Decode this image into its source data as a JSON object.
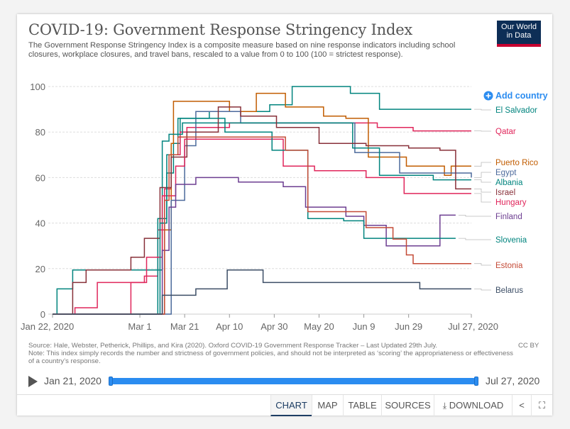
{
  "header": {
    "title": "COVID-19: Government Response Stringency Index",
    "subtitle": "The Government Response Stringency Index is a composite measure based on nine response indicators including school closures, workplace closures, and travel bans, rescaled to a value from 0 to 100 (100 = strictest response).",
    "logo_line1": "Our World",
    "logo_line2": "in Data"
  },
  "add_country_label": "Add country",
  "footer": {
    "source": "Source: Hale, Webster, Petherick, Phillips, and Kira (2020). Oxford COVID-19 Government Response Tracker – Last Updated 29th July.",
    "note": "Note: This index simply records the number and strictness of government policies, and should not be interpreted as ‘scoring’ the appropriateness or effectiveness of a country’s response.",
    "license": "CC BY"
  },
  "timeline": {
    "start_label": "Jan 21, 2020",
    "end_label": "Jul 27, 2020"
  },
  "controls": {
    "chart": "CHART",
    "map": "MAP",
    "table": "TABLE",
    "sources": "SOURCES",
    "download": "DOWNLOAD"
  },
  "chart_data": {
    "type": "line",
    "title": "COVID-19: Government Response Stringency Index",
    "x_domain": [
      "2020-01-22",
      "2020-07-27"
    ],
    "ylim": [
      0,
      100
    ],
    "y_ticks": [
      0,
      20,
      40,
      60,
      80,
      100
    ],
    "x_ticks": [
      {
        "date": "2020-01-22",
        "label": "Jan 22, 2020"
      },
      {
        "date": "2020-03-01",
        "label": "Mar 1"
      },
      {
        "date": "2020-03-21",
        "label": "Mar 21"
      },
      {
        "date": "2020-04-10",
        "label": "Apr 10"
      },
      {
        "date": "2020-04-30",
        "label": "Apr 30"
      },
      {
        "date": "2020-05-20",
        "label": "May 20"
      },
      {
        "date": "2020-06-09",
        "label": "Jun 9"
      },
      {
        "date": "2020-06-29",
        "label": "Jun 29"
      },
      {
        "date": "2020-07-27",
        "label": "Jul 27, 2020"
      }
    ],
    "grid": "horizontal-dashed",
    "legend": "right",
    "series": [
      {
        "name": "El Salvador",
        "color": "#00847e",
        "points": [
          [
            "2020-01-22",
            0
          ],
          [
            "2020-01-24",
            11.1
          ],
          [
            "2020-01-31",
            19.4
          ],
          [
            "2020-03-06",
            19.4
          ],
          [
            "2020-03-11",
            42
          ],
          [
            "2020-03-13",
            62
          ],
          [
            "2020-03-16",
            75
          ],
          [
            "2020-03-19",
            86
          ],
          [
            "2020-04-01",
            89
          ],
          [
            "2020-04-28",
            92
          ],
          [
            "2020-05-08",
            100
          ],
          [
            "2020-06-03",
            97
          ],
          [
            "2020-06-16",
            90
          ],
          [
            "2020-07-27",
            90
          ]
        ]
      },
      {
        "name": "Qatar",
        "color": "#e0265b",
        "points": [
          [
            "2020-01-22",
            0
          ],
          [
            "2020-02-01",
            2.8
          ],
          [
            "2020-02-11",
            13.9
          ],
          [
            "2020-03-03",
            16.7
          ],
          [
            "2020-03-09",
            37
          ],
          [
            "2020-03-12",
            55
          ],
          [
            "2020-03-15",
            70
          ],
          [
            "2020-03-19",
            80
          ],
          [
            "2020-03-22",
            82
          ],
          [
            "2020-04-10",
            84
          ],
          [
            "2020-06-15",
            82
          ],
          [
            "2020-07-01",
            80.5
          ],
          [
            "2020-07-27",
            80.5
          ]
        ]
      },
      {
        "name": "Puerto Rico",
        "color": "#c15c00",
        "points": [
          [
            "2020-01-22",
            0
          ],
          [
            "2020-03-07",
            0
          ],
          [
            "2020-03-12",
            37
          ],
          [
            "2020-03-15",
            75
          ],
          [
            "2020-03-16",
            93.5
          ],
          [
            "2020-04-01",
            93.5
          ],
          [
            "2020-04-10",
            89
          ],
          [
            "2020-04-22",
            97
          ],
          [
            "2020-05-05",
            91
          ],
          [
            "2020-05-22",
            87
          ],
          [
            "2020-06-01",
            86
          ],
          [
            "2020-06-11",
            69
          ],
          [
            "2020-06-28",
            65
          ],
          [
            "2020-07-15",
            61
          ],
          [
            "2020-07-18",
            65
          ],
          [
            "2020-07-27",
            65
          ]
        ]
      },
      {
        "name": "Egypt",
        "color": "#4c6a9c",
        "points": [
          [
            "2020-01-22",
            0
          ],
          [
            "2020-03-09",
            0
          ],
          [
            "2020-03-15",
            50
          ],
          [
            "2020-03-21",
            74
          ],
          [
            "2020-03-26",
            89
          ],
          [
            "2020-04-15",
            84
          ],
          [
            "2020-05-15",
            84
          ],
          [
            "2020-06-05",
            71
          ],
          [
            "2020-06-25",
            62
          ],
          [
            "2020-07-27",
            60
          ]
        ]
      },
      {
        "name": "Albania",
        "color": "#00847e",
        "points": [
          [
            "2020-01-22",
            0
          ],
          [
            "2020-03-07",
            0
          ],
          [
            "2020-03-09",
            42
          ],
          [
            "2020-03-11",
            76
          ],
          [
            "2020-03-14",
            79
          ],
          [
            "2020-03-20",
            84
          ],
          [
            "2020-04-10",
            84
          ],
          [
            "2020-05-15",
            84
          ],
          [
            "2020-06-01",
            84
          ],
          [
            "2020-06-04",
            73
          ],
          [
            "2020-06-16",
            61
          ],
          [
            "2020-07-01",
            61
          ],
          [
            "2020-07-10",
            59
          ],
          [
            "2020-07-27",
            59
          ]
        ]
      },
      {
        "name": "Israel",
        "color": "#883039",
        "points": [
          [
            "2020-01-22",
            0
          ],
          [
            "2020-01-31",
            13.9
          ],
          [
            "2020-02-06",
            19.4
          ],
          [
            "2020-02-26",
            25
          ],
          [
            "2020-03-03",
            33.3
          ],
          [
            "2020-03-10",
            55.6
          ],
          [
            "2020-03-15",
            69
          ],
          [
            "2020-03-22",
            80
          ],
          [
            "2020-04-05",
            91
          ],
          [
            "2020-04-15",
            87
          ],
          [
            "2020-05-01",
            82
          ],
          [
            "2020-05-20",
            75
          ],
          [
            "2020-06-10",
            74
          ],
          [
            "2020-06-29",
            73
          ],
          [
            "2020-07-13",
            72
          ],
          [
            "2020-07-20",
            55
          ],
          [
            "2020-07-27",
            55
          ]
        ]
      },
      {
        "name": "Hungary",
        "color": "#e0265b",
        "points": [
          [
            "2020-01-22",
            0
          ],
          [
            "2020-02-26",
            13.9
          ],
          [
            "2020-03-04",
            25
          ],
          [
            "2020-03-11",
            52
          ],
          [
            "2020-03-17",
            65
          ],
          [
            "2020-03-21",
            76.9
          ],
          [
            "2020-04-20",
            76.9
          ],
          [
            "2020-05-04",
            65
          ],
          [
            "2020-05-18",
            63
          ],
          [
            "2020-06-10",
            60
          ],
          [
            "2020-06-27",
            53
          ],
          [
            "2020-07-27",
            53
          ]
        ]
      },
      {
        "name": "Finland",
        "color": "#6d3e91",
        "points": [
          [
            "2020-01-22",
            0
          ],
          [
            "2020-03-09",
            0
          ],
          [
            "2020-03-11",
            28
          ],
          [
            "2020-03-14",
            47
          ],
          [
            "2020-03-17",
            57
          ],
          [
            "2020-03-26",
            60
          ],
          [
            "2020-04-08",
            60
          ],
          [
            "2020-04-14",
            58
          ],
          [
            "2020-05-04",
            56
          ],
          [
            "2020-05-14",
            47
          ],
          [
            "2020-06-01",
            43
          ],
          [
            "2020-06-09",
            39
          ],
          [
            "2020-06-19",
            30
          ],
          [
            "2020-07-10",
            30
          ],
          [
            "2020-07-13",
            43.5
          ],
          [
            "2020-07-20",
            43.5
          ]
        ]
      },
      {
        "name": "Slovenia",
        "color": "#00847e",
        "points": [
          [
            "2020-01-22",
            0
          ],
          [
            "2020-03-06",
            0
          ],
          [
            "2020-03-10",
            40
          ],
          [
            "2020-03-13",
            70
          ],
          [
            "2020-03-18",
            86
          ],
          [
            "2020-04-08",
            80
          ],
          [
            "2020-04-29",
            72
          ],
          [
            "2020-05-15",
            42
          ],
          [
            "2020-05-31",
            41
          ],
          [
            "2020-06-09",
            33.3
          ],
          [
            "2020-07-20",
            33.3
          ]
        ]
      },
      {
        "name": "Estonia",
        "color": "#c44a36",
        "points": [
          [
            "2020-01-22",
            0
          ],
          [
            "2020-03-09",
            0
          ],
          [
            "2020-03-12",
            50
          ],
          [
            "2020-03-14",
            70
          ],
          [
            "2020-03-18",
            77.8
          ],
          [
            "2020-04-15",
            77.8
          ],
          [
            "2020-05-05",
            72
          ],
          [
            "2020-05-15",
            45
          ],
          [
            "2020-06-10",
            38
          ],
          [
            "2020-06-22",
            33
          ],
          [
            "2020-06-28",
            26
          ],
          [
            "2020-07-01",
            22.2
          ],
          [
            "2020-07-27",
            22.2
          ]
        ]
      },
      {
        "name": "Belarus",
        "color": "#3c4e66",
        "points": [
          [
            "2020-01-22",
            0
          ],
          [
            "2020-03-04",
            0
          ],
          [
            "2020-03-11",
            8.3
          ],
          [
            "2020-03-26",
            11.1
          ],
          [
            "2020-04-09",
            19.4
          ],
          [
            "2020-04-25",
            13.9
          ],
          [
            "2020-06-29",
            13.9
          ],
          [
            "2020-07-04",
            11.1
          ],
          [
            "2020-07-27",
            11.1
          ]
        ]
      }
    ]
  }
}
